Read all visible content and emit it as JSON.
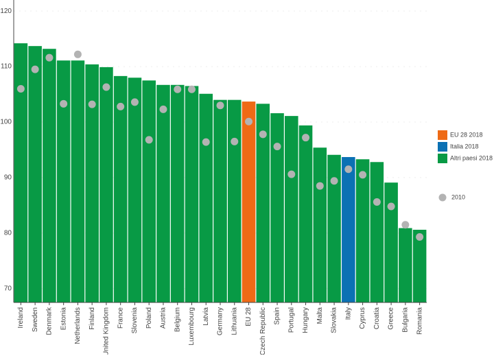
{
  "chart_data": {
    "type": "bar",
    "categories": [
      "Ireland",
      "Sweden",
      "Denmark",
      "Estonia",
      "Netherlands",
      "Finland",
      "United Kingdom",
      "France",
      "Slovenia",
      "Poland",
      "Austria",
      "Belgium",
      "Luxembourg",
      "Latvia",
      "Germany",
      "Lithuania",
      "EU 28",
      "Czech Republic",
      "Spain",
      "Portugal",
      "Hungary",
      "Malta",
      "Slovakia",
      "Italy",
      "Cyprus",
      "Croatia",
      "Greece",
      "Bulgaria",
      "Romania"
    ],
    "series": [
      {
        "name": "EU 28 2018",
        "color": "#ee6a16",
        "values": [
          null,
          null,
          null,
          null,
          null,
          null,
          null,
          null,
          null,
          null,
          null,
          null,
          null,
          null,
          null,
          null,
          103.7,
          null,
          null,
          null,
          null,
          null,
          null,
          null,
          null,
          null,
          null,
          null,
          null
        ]
      },
      {
        "name": "Italia 2018",
        "color": "#0b71b4",
        "values": [
          null,
          null,
          null,
          null,
          null,
          null,
          null,
          null,
          null,
          null,
          null,
          null,
          null,
          null,
          null,
          null,
          null,
          null,
          null,
          null,
          null,
          null,
          null,
          93.7,
          null,
          null,
          null,
          null,
          null
        ]
      },
      {
        "name": "Altri paesi 2018",
        "color": "#089a45",
        "values": [
          114.2,
          113.7,
          113.2,
          111.1,
          111.1,
          110.4,
          109.9,
          108.3,
          108.0,
          107.5,
          106.7,
          106.7,
          106.5,
          105.1,
          104.0,
          104.0,
          null,
          103.3,
          101.6,
          101.1,
          99.4,
          95.4,
          94.1,
          null,
          93.3,
          92.8,
          89.1,
          80.9,
          80.6
        ]
      },
      {
        "name": "2010",
        "color": "#b3b3b3",
        "type": "scatter",
        "values": [
          106.0,
          109.5,
          111.6,
          103.3,
          112.2,
          103.2,
          106.3,
          102.8,
          103.6,
          96.8,
          102.3,
          105.9,
          105.9,
          96.4,
          103.0,
          96.5,
          100.1,
          97.8,
          95.6,
          90.6,
          97.2,
          88.5,
          89.4,
          91.5,
          90.5,
          85.6,
          84.8,
          81.5,
          79.3
        ]
      }
    ],
    "ylim": [
      67.5,
      122
    ],
    "yticks": [
      70,
      80,
      90,
      100,
      110,
      120
    ],
    "grid": true,
    "legend": "right"
  }
}
